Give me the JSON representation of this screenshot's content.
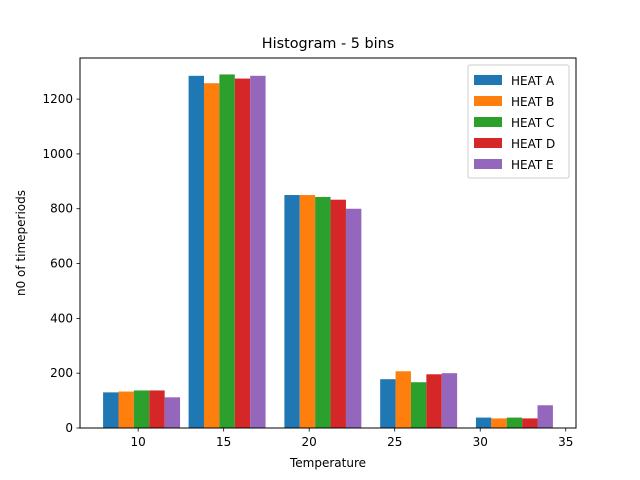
{
  "chart_data": {
    "type": "bar",
    "title": "Histogram - 5 bins",
    "xlabel": "Temperature",
    "ylabel": "n0 of timeperiods",
    "xlim": [
      6.6,
      35.6
    ],
    "ylim": [
      0,
      1350
    ],
    "xticks": [
      10,
      15,
      20,
      25,
      30,
      35
    ],
    "yticks": [
      0,
      200,
      400,
      600,
      800,
      1000,
      1200
    ],
    "grid": false,
    "legend_position": "top-right",
    "bin_centers": [
      10.2,
      15.2,
      20.8,
      26.4,
      32.0
    ],
    "series": [
      {
        "name": "HEAT A",
        "color": "#1f77b4",
        "values": [
          130,
          1285,
          850,
          178,
          38
        ]
      },
      {
        "name": "HEAT B",
        "color": "#ff7f0e",
        "values": [
          133,
          1258,
          850,
          207,
          35
        ]
      },
      {
        "name": "HEAT C",
        "color": "#2ca02c",
        "values": [
          137,
          1290,
          843,
          167,
          38
        ]
      },
      {
        "name": "HEAT D",
        "color": "#d62728",
        "values": [
          137,
          1275,
          833,
          196,
          35
        ]
      },
      {
        "name": "HEAT E",
        "color": "#9467bd",
        "values": [
          112,
          1285,
          800,
          200,
          83
        ]
      }
    ]
  }
}
